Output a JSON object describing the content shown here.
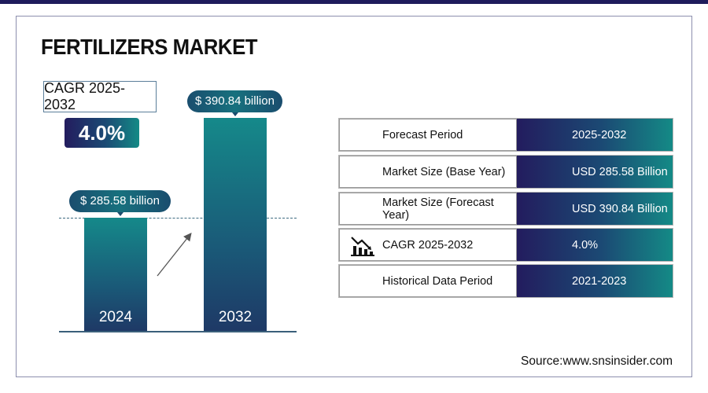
{
  "title": "FERTILIZERS MARKET",
  "cagr": {
    "label": "CAGR 2025-2032",
    "value": "4.0%"
  },
  "colors": {
    "navy": "#231c5e",
    "teal": "#148a86",
    "topbar": "#1f1c5c"
  },
  "chart_data": {
    "type": "bar",
    "categories": [
      "2024",
      "2032"
    ],
    "values": [
      285.58,
      390.84
    ],
    "value_labels": [
      "$ 285.58 billion",
      "$ 390.84 billion"
    ],
    "unit": "USD billion",
    "grid": false
  },
  "table": [
    {
      "label": "Forecast Period",
      "value": "2025-2032"
    },
    {
      "label": "Market Size (Base Year)",
      "value": "USD 285.58 Billion"
    },
    {
      "label": "Market Size (Forecast Year)",
      "value": "USD 390.84 Billion"
    },
    {
      "label": "CAGR 2025-2032",
      "value": "4.0%",
      "icon": "bar-chart-trend-icon"
    },
    {
      "label": "Historical Data Period",
      "value": "2021-2023"
    }
  ],
  "source": "Source:www.snsinsider.com"
}
